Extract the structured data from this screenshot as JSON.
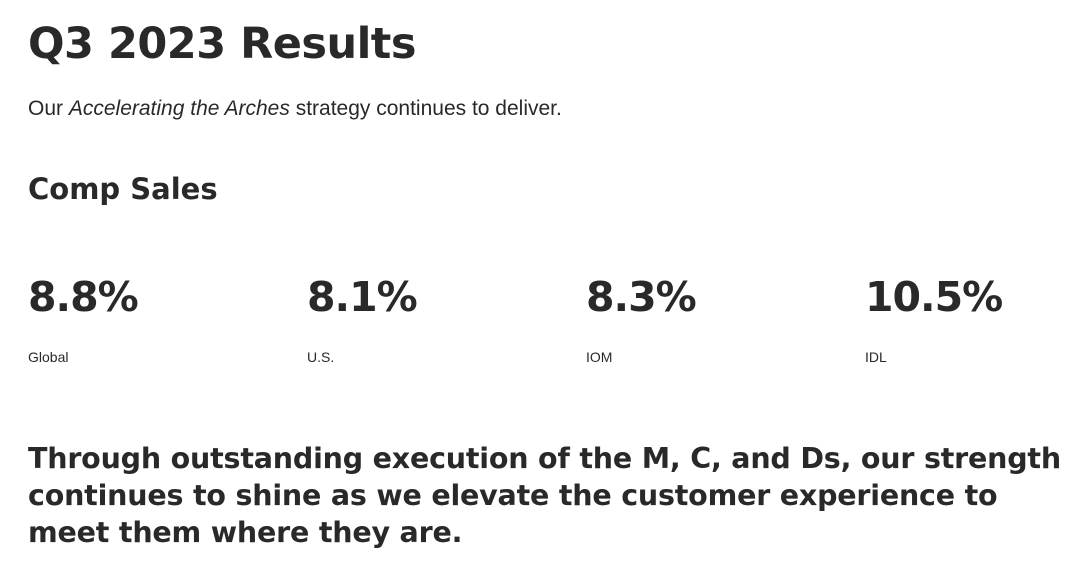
{
  "header": {
    "title": "Q3 2023 Results",
    "subtitle_before": "Our ",
    "subtitle_emphasis": "Accelerating the Arches",
    "subtitle_after": " strategy continues to deliver."
  },
  "comp_sales": {
    "heading": "Comp Sales",
    "items": [
      {
        "value": "8.8%",
        "label": "Global"
      },
      {
        "value": "8.1%",
        "label": "U.S."
      },
      {
        "value": "8.3%",
        "label": "IOM"
      },
      {
        "value": "10.5%",
        "label": "IDL"
      }
    ]
  },
  "statement": {
    "text": "Through outstanding execution of the M, C, and Ds, our strength continues to shine as we elevate the customer experience to meet them where they are."
  }
}
